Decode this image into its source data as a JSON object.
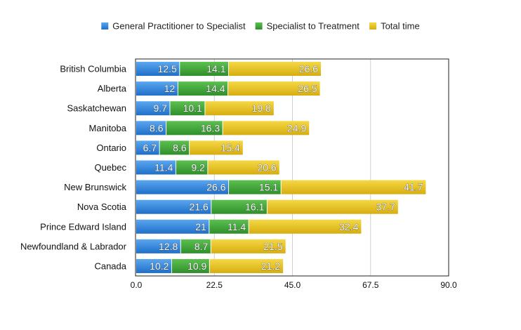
{
  "chart_data": {
    "type": "bar",
    "orientation": "horizontal",
    "stacked": true,
    "categories": [
      "British Columbia",
      "Alberta",
      "Saskatchewan",
      "Manitoba",
      "Ontario",
      "Quebec",
      "New Brunswick",
      "Nova Scotia",
      "Prince Edward Island",
      "Newfoundland & Labrador",
      "Canada"
    ],
    "series": [
      {
        "name": "General Practitioner to Specialist",
        "color": "#2f80d8",
        "values": [
          12.5,
          12,
          9.7,
          8.6,
          6.7,
          11.4,
          26.6,
          21.6,
          21,
          12.8,
          10.2
        ],
        "labels": [
          "12.5",
          "12",
          "9.7",
          "8.6",
          "6.7",
          "11.4",
          "26.6",
          "21.6",
          "21",
          "12.8",
          "10.2"
        ]
      },
      {
        "name": "Specialist to Treatment",
        "color": "#3ea63a",
        "values": [
          14.1,
          14.4,
          10.1,
          16.3,
          8.6,
          9.2,
          15.1,
          16.1,
          11.4,
          8.7,
          10.9
        ],
        "labels": [
          "14.1",
          "14.4",
          "10.1",
          "16.3",
          "8.6",
          "9.2",
          "15.1",
          "16.1",
          "11.4",
          "8.7",
          "10.9"
        ]
      },
      {
        "name": "Total time",
        "color": "#e7c421",
        "values": [
          26.6,
          26.5,
          19.8,
          24.9,
          15.4,
          20.6,
          41.7,
          37.7,
          32.4,
          21.5,
          21.2
        ],
        "labels": [
          "26.6",
          "26.5",
          "19.8",
          "24.9",
          "15.4",
          "20.6",
          "41.7",
          "37.7",
          "32.4",
          "21.5",
          "21.2"
        ]
      }
    ],
    "xlim": [
      0,
      90
    ],
    "ticks": [
      "0.0",
      "22.5",
      "45.0",
      "67.5",
      "90.0"
    ],
    "tick_values": [
      0,
      22.5,
      45,
      67.5,
      90
    ],
    "title": "",
    "xlabel": "",
    "ylabel": "",
    "grid": true,
    "legend_position": "top"
  }
}
